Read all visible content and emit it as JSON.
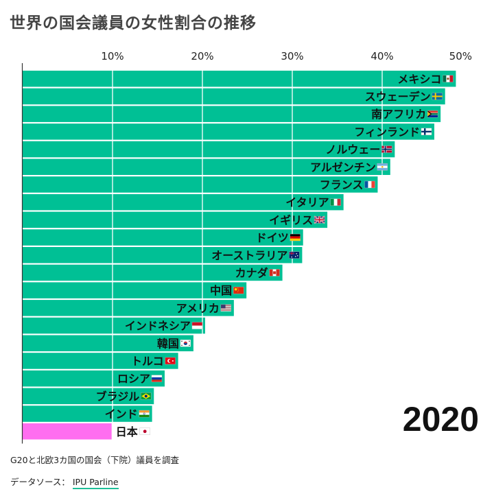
{
  "colors": {
    "bar": "#00c095",
    "highlight": "#ff6ef0",
    "grid": "#ffffff",
    "axis": "#333333"
  },
  "chart_data": {
    "type": "bar",
    "orientation": "horizontal",
    "title": "世界の国会議員の女性割合の推移",
    "xlim": [
      0,
      50
    ],
    "ticks": [
      "10%",
      "20%",
      "30%",
      "40%",
      "50%"
    ],
    "tick_values": [
      10,
      20,
      30,
      40,
      50
    ],
    "year": "2020",
    "categories": [
      "メキシコ",
      "スウェーデン",
      "南アフリカ",
      "フィンランド",
      "ノルウェー",
      "アルゼンチン",
      "フランス",
      "イタリア",
      "イギリス",
      "ドイツ",
      "オーストラリア",
      "カナダ",
      "中国",
      "アメリカ",
      "インドネシア",
      "韓国",
      "トルコ",
      "ロシア",
      "ブラジル",
      "インド",
      "日本"
    ],
    "values": [
      48.2,
      47.0,
      46.5,
      45.8,
      41.4,
      40.9,
      39.5,
      35.7,
      33.9,
      31.2,
      31.1,
      28.9,
      24.9,
      23.5,
      20.3,
      19.0,
      17.3,
      15.8,
      14.6,
      14.4,
      9.9
    ],
    "highlight": "日本",
    "flags": [
      "flag-mexico",
      "flag-sweden",
      "flag-south-africa",
      "flag-finland",
      "flag-norway",
      "flag-argentina",
      "flag-france",
      "flag-italy",
      "flag-uk",
      "flag-germany",
      "flag-australia",
      "flag-canada",
      "flag-china",
      "flag-usa",
      "flag-indonesia",
      "flag-korea",
      "flag-turkey",
      "flag-russia",
      "flag-brazil",
      "flag-india",
      "flag-japan"
    ]
  },
  "footer": {
    "note": "G20と北欧3カ国の国会（下院）議員を調査",
    "source_label": "データソース：",
    "source_link": "IPU Parline"
  }
}
